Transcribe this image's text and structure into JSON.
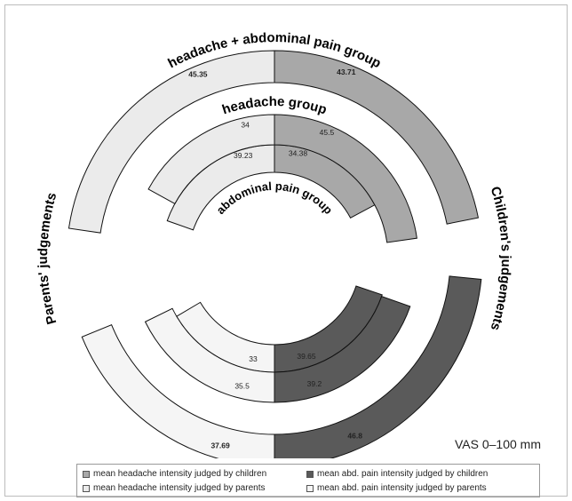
{
  "chart_data": {
    "type": "radial-bar",
    "vas_label": "VAS 0–100 mm",
    "side_labels": {
      "left": "Parents' judgements",
      "right": "Children's judgements"
    },
    "colors": {
      "children_headache": "#a8a8a8",
      "children_abd": "#5a5a5a",
      "parents_headache": "#ebebeb",
      "parents_abd": "#f5f5f5"
    },
    "groups": [
      {
        "name": "abdominal pain group",
        "values": {
          "children_headache": 34.38,
          "children_abd": 39.65,
          "parents_headache": 39.23,
          "parents_abd": 33
        }
      },
      {
        "name": "headache group",
        "values": {
          "children_headache": 45.5,
          "children_abd": 39.2,
          "parents_headache": 34,
          "parents_abd": 35.5
        }
      },
      {
        "name": "headache + abdominal pain group",
        "values": {
          "children_headache": 43.71,
          "children_abd": 46.8,
          "parents_headache": 45.35,
          "parents_abd": 37.69
        }
      }
    ],
    "legend": [
      {
        "key": "children_headache",
        "label": "mean headache intensity judged by children"
      },
      {
        "key": "children_abd",
        "label": "mean abd. pain intensity judged by children"
      },
      {
        "key": "parents_headache",
        "label": "mean headache intensity judged by parents"
      },
      {
        "key": "parents_abd",
        "label": "mean abd. pain intensity judged by parents"
      }
    ]
  }
}
